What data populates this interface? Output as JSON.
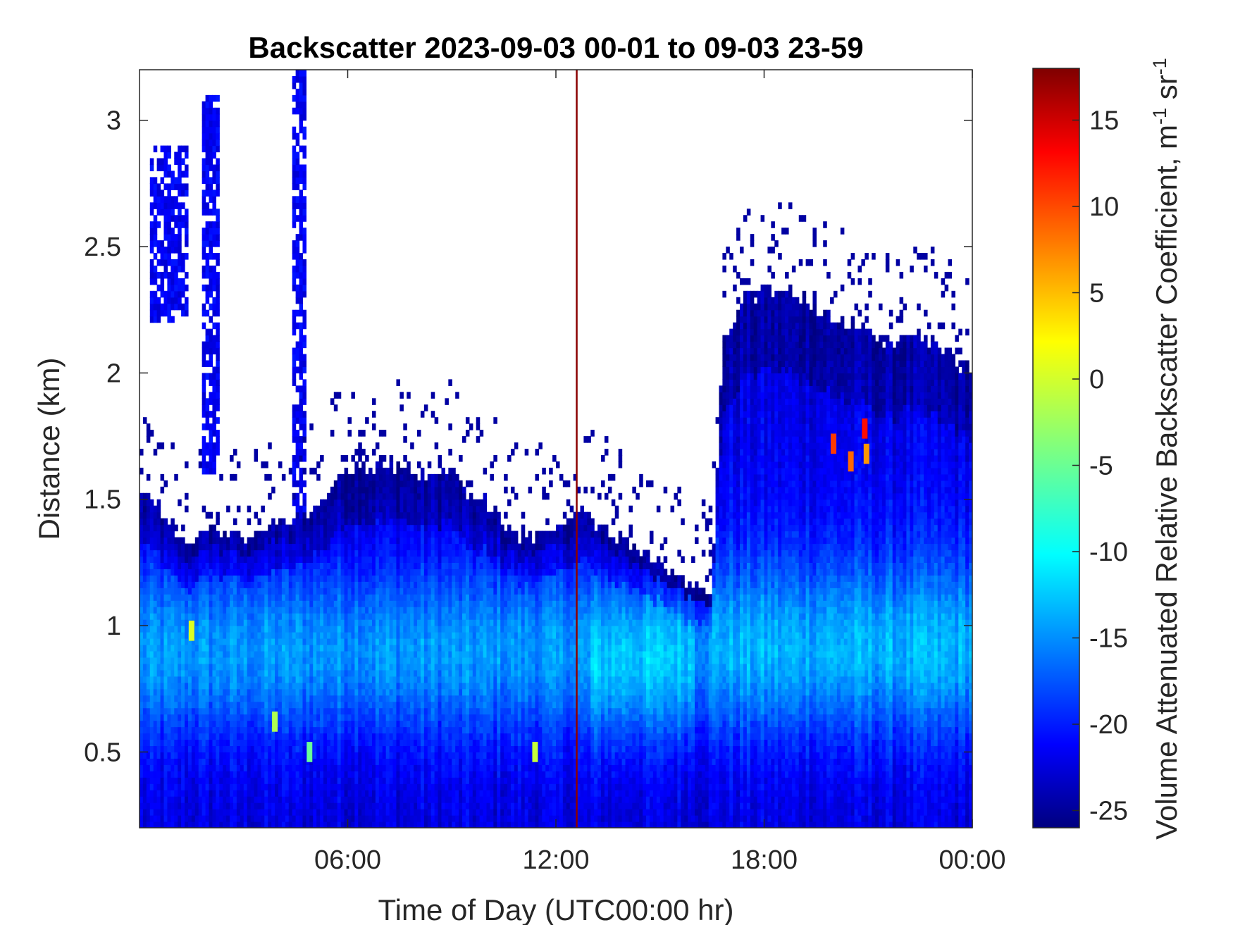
{
  "chart_data": {
    "type": "heatmap",
    "title": "Backscatter 2023-09-03 00-01 to 09-03 23-59",
    "xlabel": "Time of Day (UTC00:00 hr)",
    "ylabel": "Distance (km)",
    "colorbar_label": "Volume Attenuated Relative Backscatter Coefficient, m",
    "colorbar_unit_exp1": "-1",
    "colorbar_unit_sr": " sr",
    "colorbar_unit_exp2": "-1",
    "xlim_hours": [
      0,
      24
    ],
    "ylim_km": [
      0.2,
      3.2
    ],
    "clim": [
      -26,
      18
    ],
    "x_ticks": [
      {
        "value": 6,
        "label": "06:00"
      },
      {
        "value": 12,
        "label": "12:00"
      },
      {
        "value": 18,
        "label": "18:00"
      },
      {
        "value": 24,
        "label": "00:00"
      }
    ],
    "y_ticks": [
      {
        "value": 0.5,
        "label": "0.5"
      },
      {
        "value": 1,
        "label": "1"
      },
      {
        "value": 1.5,
        "label": "1.5"
      },
      {
        "value": 2,
        "label": "2"
      },
      {
        "value": 2.5,
        "label": "2.5"
      },
      {
        "value": 3,
        "label": "3"
      }
    ],
    "colorbar_ticks": [
      {
        "value": -25,
        "label": "-25"
      },
      {
        "value": -20,
        "label": "-20"
      },
      {
        "value": -15,
        "label": "-15"
      },
      {
        "value": -10,
        "label": "-10"
      },
      {
        "value": -5,
        "label": "-5"
      },
      {
        "value": 0,
        "label": "0"
      },
      {
        "value": 5,
        "label": "5"
      },
      {
        "value": 10,
        "label": "10"
      },
      {
        "value": 15,
        "label": "15"
      }
    ],
    "colormap": "jet",
    "marker_line": {
      "time_hours": 12.6,
      "color": "#8b0000"
    },
    "signal_top_km": [
      {
        "t": 0.0,
        "h": 1.55
      },
      {
        "t": 0.5,
        "h": 1.5
      },
      {
        "t": 1.0,
        "h": 1.35
      },
      {
        "t": 1.5,
        "h": 1.3
      },
      {
        "t": 2.0,
        "h": 1.4
      },
      {
        "t": 3.0,
        "h": 1.35
      },
      {
        "t": 4.0,
        "h": 1.4
      },
      {
        "t": 5.0,
        "h": 1.45
      },
      {
        "t": 6.0,
        "h": 1.6
      },
      {
        "t": 7.0,
        "h": 1.65
      },
      {
        "t": 8.0,
        "h": 1.6
      },
      {
        "t": 9.0,
        "h": 1.6
      },
      {
        "t": 9.5,
        "h": 1.5
      },
      {
        "t": 10.0,
        "h": 1.5
      },
      {
        "t": 10.5,
        "h": 1.4
      },
      {
        "t": 11.0,
        "h": 1.35
      },
      {
        "t": 12.0,
        "h": 1.38
      },
      {
        "t": 12.6,
        "h": 1.45
      },
      {
        "t": 13.5,
        "h": 1.38
      },
      {
        "t": 14.5,
        "h": 1.3
      },
      {
        "t": 15.5,
        "h": 1.2
      },
      {
        "t": 16.0,
        "h": 1.15
      },
      {
        "t": 16.5,
        "h": 1.15
      },
      {
        "t": 16.8,
        "h": 2.1
      },
      {
        "t": 17.5,
        "h": 2.3
      },
      {
        "t": 18.5,
        "h": 2.35
      },
      {
        "t": 19.5,
        "h": 2.25
      },
      {
        "t": 20.5,
        "h": 2.2
      },
      {
        "t": 21.5,
        "h": 2.1
      },
      {
        "t": 22.5,
        "h": 2.15
      },
      {
        "t": 23.5,
        "h": 2.05
      },
      {
        "t": 24.0,
        "h": 2.0
      }
    ],
    "upper_features": [
      {
        "t0": 0.35,
        "t1": 1.45,
        "h0": 2.2,
        "h1": 2.9
      },
      {
        "t0": 1.8,
        "t1": 2.3,
        "h0": 1.6,
        "h1": 3.1
      },
      {
        "t0": 4.4,
        "t1": 4.8,
        "h0": 0.2,
        "h1": 3.2
      }
    ],
    "strong_echoes": [
      {
        "t": 1.5,
        "h": 0.98,
        "v": 0
      },
      {
        "t": 3.9,
        "h": 0.62,
        "v": -2
      },
      {
        "t": 4.9,
        "h": 0.5,
        "v": -5
      },
      {
        "t": 11.4,
        "h": 0.5,
        "v": -1
      },
      {
        "t": 20.0,
        "h": 1.72,
        "v": 10
      },
      {
        "t": 20.5,
        "h": 1.65,
        "v": 8
      },
      {
        "t": 20.9,
        "h": 1.78,
        "v": 12
      },
      {
        "t": 20.95,
        "h": 1.68,
        "v": 6
      }
    ]
  }
}
